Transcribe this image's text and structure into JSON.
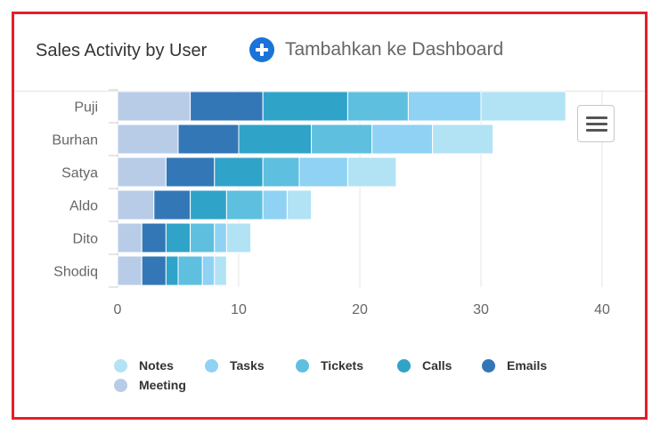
{
  "header": {
    "title": "Sales Activity by User",
    "add_label": "Tambahkan ke Dashboard"
  },
  "chart_menu": {
    "icon": "hamburger-menu-icon"
  },
  "colors": {
    "frame": "#e3202a",
    "add_button": "#1a73d9",
    "axis_text": "#666666",
    "grid": "#e6e6e6"
  },
  "chart_data": {
    "type": "bar",
    "orientation": "horizontal",
    "stacked": true,
    "title": "Sales Activity by User",
    "categories": [
      "Puji",
      "Burhan",
      "Satya",
      "Aldo",
      "Dito",
      "Shodiq"
    ],
    "series": [
      {
        "name": "Meeting",
        "color": "#b8cce8",
        "values": [
          6,
          5,
          4,
          3,
          2,
          2
        ]
      },
      {
        "name": "Emails",
        "color": "#3377b7",
        "values": [
          6,
          5,
          4,
          3,
          2,
          2
        ]
      },
      {
        "name": "Calls",
        "color": "#30a3c8",
        "values": [
          7,
          6,
          4,
          3,
          2,
          1
        ]
      },
      {
        "name": "Tickets",
        "color": "#5fbfdf",
        "values": [
          5,
          5,
          3,
          3,
          2,
          2
        ]
      },
      {
        "name": "Tasks",
        "color": "#8fd2f3",
        "values": [
          6,
          5,
          4,
          2,
          1,
          1
        ]
      },
      {
        "name": "Notes",
        "color": "#b2e3f5",
        "values": [
          7,
          5,
          4,
          2,
          2,
          1
        ]
      }
    ],
    "legend_order": [
      "Notes",
      "Tasks",
      "Tickets",
      "Calls",
      "Emails",
      "Meeting"
    ],
    "xlim": [
      0,
      40
    ],
    "xticks": [
      0,
      10,
      20,
      30,
      40
    ],
    "xlabel": "",
    "ylabel": "",
    "grid": true,
    "legend_position": "bottom"
  }
}
